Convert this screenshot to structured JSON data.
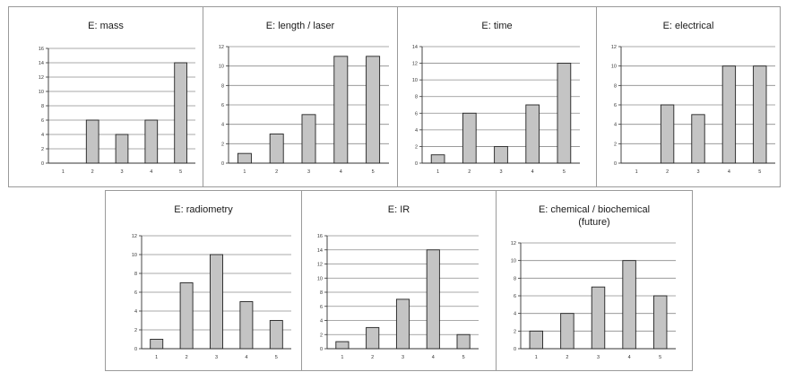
{
  "chart_data": [
    {
      "type": "bar",
      "title": "E: mass",
      "title_line2": "",
      "categories": [
        "1",
        "2",
        "3",
        "4",
        "5"
      ],
      "values": [
        0,
        6,
        4,
        6,
        14
      ],
      "ylim": [
        0,
        16
      ],
      "yticks": [
        0,
        2,
        4,
        6,
        8,
        10,
        12,
        14,
        16
      ],
      "bar_color": "#c4c4c4",
      "grid": true,
      "legend": "none"
    },
    {
      "type": "bar",
      "title": "E: length / laser",
      "title_line2": "",
      "categories": [
        "1",
        "2",
        "3",
        "4",
        "5"
      ],
      "values": [
        1,
        3,
        5,
        11,
        11
      ],
      "ylim": [
        0,
        12
      ],
      "yticks": [
        0,
        2,
        4,
        6,
        8,
        10,
        12
      ],
      "bar_color": "#c4c4c4",
      "grid": true,
      "legend": "none"
    },
    {
      "type": "bar",
      "title": "E: time",
      "title_line2": "",
      "categories": [
        "1",
        "2",
        "3",
        "4",
        "5"
      ],
      "values": [
        1,
        6,
        2,
        7,
        12
      ],
      "ylim": [
        0,
        14
      ],
      "yticks": [
        0,
        2,
        4,
        6,
        8,
        10,
        12,
        14
      ],
      "bar_color": "#c4c4c4",
      "grid": true,
      "legend": "none"
    },
    {
      "type": "bar",
      "title": "E: electrical",
      "title_line2": "",
      "categories": [
        "1",
        "2",
        "3",
        "4",
        "5"
      ],
      "values": [
        0,
        6,
        5,
        10,
        10
      ],
      "ylim": [
        0,
        12
      ],
      "yticks": [
        0,
        2,
        4,
        6,
        8,
        10,
        12
      ],
      "bar_color": "#c4c4c4",
      "grid": true,
      "legend": "none"
    },
    {
      "type": "bar",
      "title": "E: radiometry",
      "title_line2": "",
      "categories": [
        "1",
        "2",
        "3",
        "4",
        "5"
      ],
      "values": [
        1,
        7,
        10,
        5,
        3
      ],
      "ylim": [
        0,
        12
      ],
      "yticks": [
        0,
        2,
        4,
        6,
        8,
        10,
        12
      ],
      "bar_color": "#c4c4c4",
      "grid": true,
      "legend": "none"
    },
    {
      "type": "bar",
      "title": "E: IR",
      "title_line2": "",
      "categories": [
        "1",
        "2",
        "3",
        "4",
        "5"
      ],
      "values": [
        1,
        3,
        7,
        14,
        2
      ],
      "ylim": [
        0,
        16
      ],
      "yticks": [
        0,
        2,
        4,
        6,
        8,
        10,
        12,
        14,
        16
      ],
      "bar_color": "#c4c4c4",
      "grid": true,
      "legend": "none"
    },
    {
      "type": "bar",
      "title": "E: chemical / biochemical",
      "title_line2": "(future)",
      "categories": [
        "1",
        "2",
        "3",
        "4",
        "5"
      ],
      "values": [
        2,
        4,
        7,
        10,
        6
      ],
      "ylim": [
        0,
        12
      ],
      "yticks": [
        0,
        2,
        4,
        6,
        8,
        10,
        12
      ],
      "bar_color": "#c4c4c4",
      "grid": true,
      "legend": "none"
    }
  ]
}
